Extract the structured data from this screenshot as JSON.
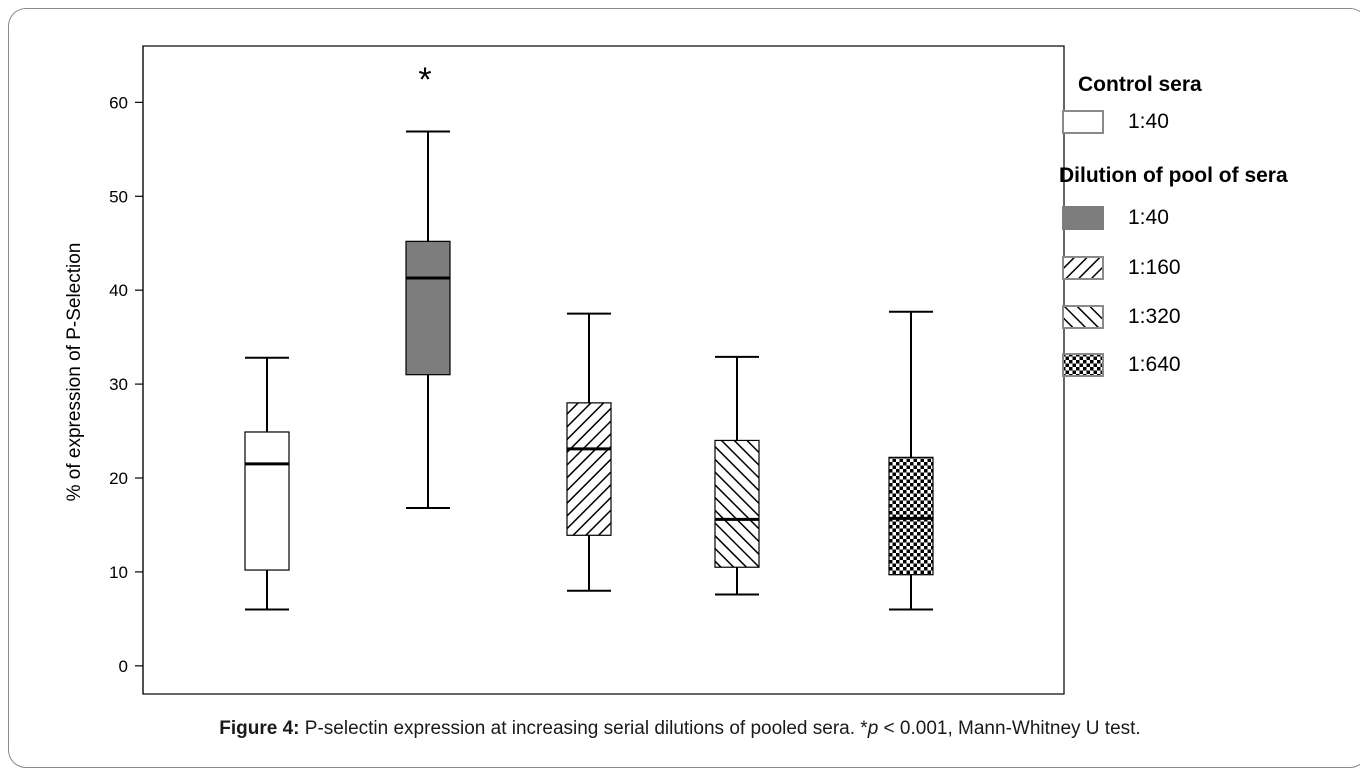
{
  "chart_data": {
    "type": "box",
    "ylabel": "% of expression of P-Selection",
    "ylim": [
      -3,
      66
    ],
    "yticks": [
      0,
      10,
      20,
      30,
      40,
      50,
      60
    ],
    "grid": false,
    "legend_position": "right",
    "annotation": "*",
    "series": [
      {
        "group": "Control sera",
        "dilution": "1:40",
        "fill": "white",
        "min": 6.0,
        "q1": 10.2,
        "median": 21.5,
        "q3": 24.9,
        "max": 32.8
      },
      {
        "group": "Dilution of pool of sera",
        "dilution": "1:40",
        "fill": "solid-gray",
        "min": 16.8,
        "q1": 31.0,
        "median": 41.3,
        "q3": 45.2,
        "max": 56.9,
        "significant": true
      },
      {
        "group": "Dilution of pool of sera",
        "dilution": "1:160",
        "fill": "diagonal-back",
        "min": 8.0,
        "q1": 13.9,
        "median": 23.1,
        "q3": 28.0,
        "max": 37.5
      },
      {
        "group": "Dilution of pool of sera",
        "dilution": "1:320",
        "fill": "diagonal-forward",
        "min": 7.6,
        "q1": 10.5,
        "median": 15.6,
        "q3": 24.0,
        "max": 32.9
      },
      {
        "group": "Dilution of pool of sera",
        "dilution": "1:640",
        "fill": "checker",
        "min": 6.0,
        "q1": 9.7,
        "median": 15.7,
        "q3": 22.2,
        "max": 37.7
      }
    ],
    "legend": {
      "control_heading": "Control sera",
      "control_items": [
        {
          "label": "1:40",
          "fill": "white"
        }
      ],
      "dilution_heading": "Dilution of pool of sera",
      "dilution_items": [
        {
          "label": "1:40",
          "fill": "solid-gray"
        },
        {
          "label": "1:160",
          "fill": "diagonal-back"
        },
        {
          "label": "1:320",
          "fill": "diagonal-forward"
        },
        {
          "label": "1:640",
          "fill": "checker"
        }
      ]
    }
  },
  "colors": {
    "box_gray": "#7d7d7d",
    "frame": "#8a8a8a",
    "axis": "#000000"
  },
  "caption": {
    "label": "Figure 4:",
    "text_before": " P-selectin expression at increasing serial dilutions of pooled sera. *",
    "p_symbol": "p",
    "text_after": " < 0.001, Mann-Whitney U test."
  }
}
